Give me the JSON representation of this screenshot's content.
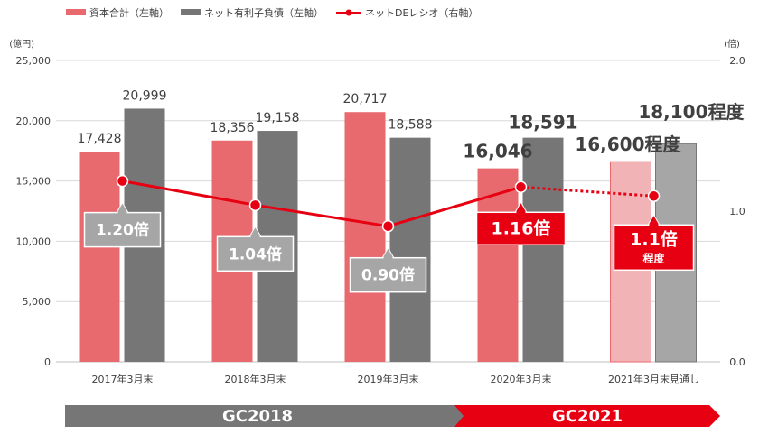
{
  "legend": [
    {
      "label": "資本合計（左軸）",
      "color": "#e8696e",
      "kind": "bar"
    },
    {
      "label": "ネット有利子負債（左軸）",
      "color": "#767676",
      "kind": "bar"
    },
    {
      "label": "ネットDEレシオ（右軸）",
      "color": "#e60012",
      "kind": "line"
    }
  ],
  "chart_data": {
    "type": "bar",
    "categories": [
      "2017年3月末",
      "2018年3月末",
      "2019年3月末",
      "2020年3月末",
      "2021年3月末見通し"
    ],
    "series": [
      {
        "name": "資本合計（左軸）",
        "axis": "left",
        "values": [
          17428,
          18356,
          20717,
          16046,
          16600
        ],
        "color": "#e8696e",
        "forecast_color": "#f2b3b6"
      },
      {
        "name": "ネット有利子負債（左軸）",
        "axis": "left",
        "values": [
          20999,
          19158,
          18588,
          18591,
          18100
        ],
        "color": "#767676",
        "forecast_color": "#a6a6a6"
      },
      {
        "name": "ネットDEレシオ（右軸）",
        "axis": "right",
        "type": "line",
        "values": [
          1.2,
          1.04,
          0.9,
          1.16,
          1.1
        ],
        "color": "#e60012"
      }
    ],
    "forecast_index": 4,
    "left_axis": {
      "unit": "(億円)",
      "ylim": [
        0,
        25000
      ],
      "ticks": [
        "0",
        "5,000",
        "10,000",
        "15,000",
        "20,000",
        "25,000"
      ]
    },
    "right_axis": {
      "unit": "(倍)",
      "ylim": [
        0,
        2.0
      ],
      "ticks": [
        "0.0",
        "1.0",
        "2.0"
      ]
    },
    "bar_labels": {
      "equity": [
        "17,428",
        "18,356",
        "20,717",
        "16,046",
        "16,600程度"
      ],
      "debt": [
        "20,999",
        "19,158",
        "18,588",
        "18,591",
        "18,100程度"
      ]
    },
    "ratio_labels": [
      "1.20倍",
      "1.04倍",
      "0.90倍",
      "1.16倍",
      "1.1倍"
    ],
    "ratio_sublabel": "程度",
    "grid": true,
    "legend_position": "top-left"
  },
  "phases": [
    {
      "label": "GC2018",
      "color": "#767676"
    },
    {
      "label": "GC2021",
      "color": "#e60012"
    }
  ]
}
